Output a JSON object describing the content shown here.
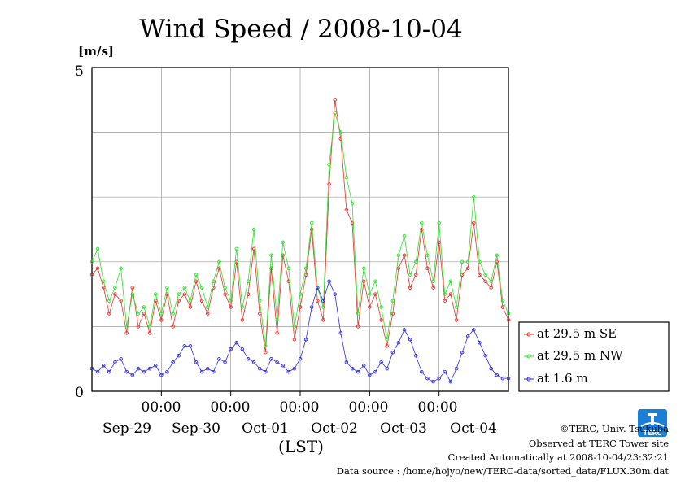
{
  "colors": {
    "grid": "#9a9a9a",
    "se": "#e8302a",
    "nw": "#2ee02e",
    "low": "#2a2ae8",
    "logo": "#1a7fd6"
  },
  "credits": {
    "copyright": "©TERC, Univ. Tsukuba",
    "observed": "Observed at TERC Tower site",
    "created": "Created Automatically at 2008-10-04/23:32:21",
    "source": "Data source : /home/hojyo/new/TERC-data/sorted_data/FLUX.30m.dat"
  },
  "logo": {
    "text": "TERC"
  },
  "chart_data": {
    "type": "line",
    "title": "Wind Speed / 2008-10-04",
    "ylabel": "[m/s]",
    "xlabel": "(LST)",
    "ylim": [
      0,
      5
    ],
    "yticks": [
      "0",
      "5"
    ],
    "xlim": [
      0,
      144
    ],
    "time_ticks": [
      "00:00",
      "00:00",
      "00:00",
      "00:00",
      "00:00"
    ],
    "date_labels": [
      "Sep-29",
      "Sep-30",
      "Oct-01",
      "Oct-02",
      "Oct-03",
      "Oct-04"
    ],
    "grid": true,
    "legend_position": "right",
    "series": [
      {
        "name": "at 29.5 m SE",
        "color": "#e8302a",
        "x": [
          0,
          2,
          4,
          6,
          8,
          10,
          12,
          14,
          16,
          18,
          20,
          22,
          24,
          26,
          28,
          30,
          32,
          34,
          36,
          38,
          40,
          42,
          44,
          46,
          48,
          50,
          52,
          54,
          56,
          58,
          60,
          62,
          64,
          66,
          68,
          70,
          72,
          74,
          76,
          78,
          80,
          82,
          84,
          86,
          88,
          90,
          92,
          94,
          96,
          98,
          100,
          102,
          104,
          106,
          108,
          110,
          112,
          114,
          116,
          118,
          120,
          122,
          124,
          126,
          128,
          130,
          132,
          134,
          136,
          138,
          140,
          142,
          144
        ],
        "y": [
          1.8,
          1.9,
          1.6,
          1.2,
          1.5,
          1.4,
          0.9,
          1.6,
          1.0,
          1.2,
          0.9,
          1.4,
          1.1,
          1.5,
          1.0,
          1.4,
          1.5,
          1.3,
          1.7,
          1.4,
          1.2,
          1.6,
          1.9,
          1.5,
          1.3,
          2.0,
          1.1,
          1.5,
          2.2,
          1.2,
          0.6,
          1.9,
          0.9,
          2.1,
          1.7,
          0.8,
          1.3,
          1.8,
          2.5,
          1.4,
          1.1,
          3.2,
          4.5,
          3.9,
          2.8,
          2.6,
          1.0,
          1.7,
          1.3,
          1.5,
          1.1,
          0.7,
          1.2,
          1.9,
          2.1,
          1.6,
          1.8,
          2.5,
          1.9,
          1.6,
          2.3,
          1.4,
          1.5,
          1.1,
          1.8,
          1.9,
          2.6,
          1.8,
          1.7,
          1.6,
          2.0,
          1.3,
          1.1
        ]
      },
      {
        "name": "at 29.5 m NW",
        "color": "#2ee02e",
        "x": [
          0,
          2,
          4,
          6,
          8,
          10,
          12,
          14,
          16,
          18,
          20,
          22,
          24,
          26,
          28,
          30,
          32,
          34,
          36,
          38,
          40,
          42,
          44,
          46,
          48,
          50,
          52,
          54,
          56,
          58,
          60,
          62,
          64,
          66,
          68,
          70,
          72,
          74,
          76,
          78,
          80,
          82,
          84,
          86,
          88,
          90,
          92,
          94,
          96,
          98,
          100,
          102,
          104,
          106,
          108,
          110,
          112,
          114,
          116,
          118,
          120,
          122,
          124,
          126,
          128,
          130,
          132,
          134,
          136,
          138,
          140,
          142,
          144
        ],
        "y": [
          2.0,
          2.2,
          1.7,
          1.4,
          1.6,
          1.9,
          1.0,
          1.5,
          1.2,
          1.3,
          1.0,
          1.5,
          1.2,
          1.6,
          1.2,
          1.5,
          1.6,
          1.4,
          1.8,
          1.6,
          1.3,
          1.7,
          2.0,
          1.6,
          1.4,
          2.2,
          1.3,
          1.7,
          2.5,
          1.4,
          0.7,
          2.1,
          1.1,
          2.3,
          1.9,
          1.0,
          1.5,
          1.9,
          2.6,
          1.6,
          1.3,
          3.5,
          4.3,
          4.0,
          3.3,
          2.9,
          1.2,
          1.9,
          1.5,
          1.7,
          1.3,
          0.8,
          1.4,
          2.1,
          2.4,
          1.8,
          2.0,
          2.6,
          2.1,
          1.7,
          2.6,
          1.5,
          1.7,
          1.3,
          2.0,
          2.0,
          3.0,
          2.0,
          1.8,
          1.7,
          2.1,
          1.4,
          1.2
        ]
      },
      {
        "name": "at 1.6 m",
        "color": "#2a2ae8",
        "x": [
          0,
          2,
          4,
          6,
          8,
          10,
          12,
          14,
          16,
          18,
          20,
          22,
          24,
          26,
          28,
          30,
          32,
          34,
          36,
          38,
          40,
          42,
          44,
          46,
          48,
          50,
          52,
          54,
          56,
          58,
          60,
          62,
          64,
          66,
          68,
          70,
          72,
          74,
          76,
          78,
          80,
          82,
          84,
          86,
          88,
          90,
          92,
          94,
          96,
          98,
          100,
          102,
          104,
          106,
          108,
          110,
          112,
          114,
          116,
          118,
          120,
          122,
          124,
          126,
          128,
          130,
          132,
          134,
          136,
          138,
          140,
          142,
          144
        ],
        "y": [
          0.35,
          0.3,
          0.4,
          0.3,
          0.45,
          0.5,
          0.3,
          0.25,
          0.35,
          0.3,
          0.35,
          0.4,
          0.25,
          0.3,
          0.45,
          0.55,
          0.7,
          0.7,
          0.45,
          0.3,
          0.35,
          0.3,
          0.5,
          0.45,
          0.65,
          0.75,
          0.65,
          0.5,
          0.45,
          0.35,
          0.3,
          0.5,
          0.45,
          0.4,
          0.3,
          0.35,
          0.5,
          0.8,
          1.3,
          1.6,
          1.4,
          1.7,
          1.5,
          0.9,
          0.45,
          0.35,
          0.3,
          0.4,
          0.25,
          0.3,
          0.45,
          0.35,
          0.6,
          0.75,
          0.95,
          0.8,
          0.55,
          0.3,
          0.2,
          0.15,
          0.2,
          0.3,
          0.15,
          0.35,
          0.6,
          0.85,
          0.95,
          0.75,
          0.55,
          0.35,
          0.25,
          0.2,
          0.2
        ]
      }
    ]
  }
}
